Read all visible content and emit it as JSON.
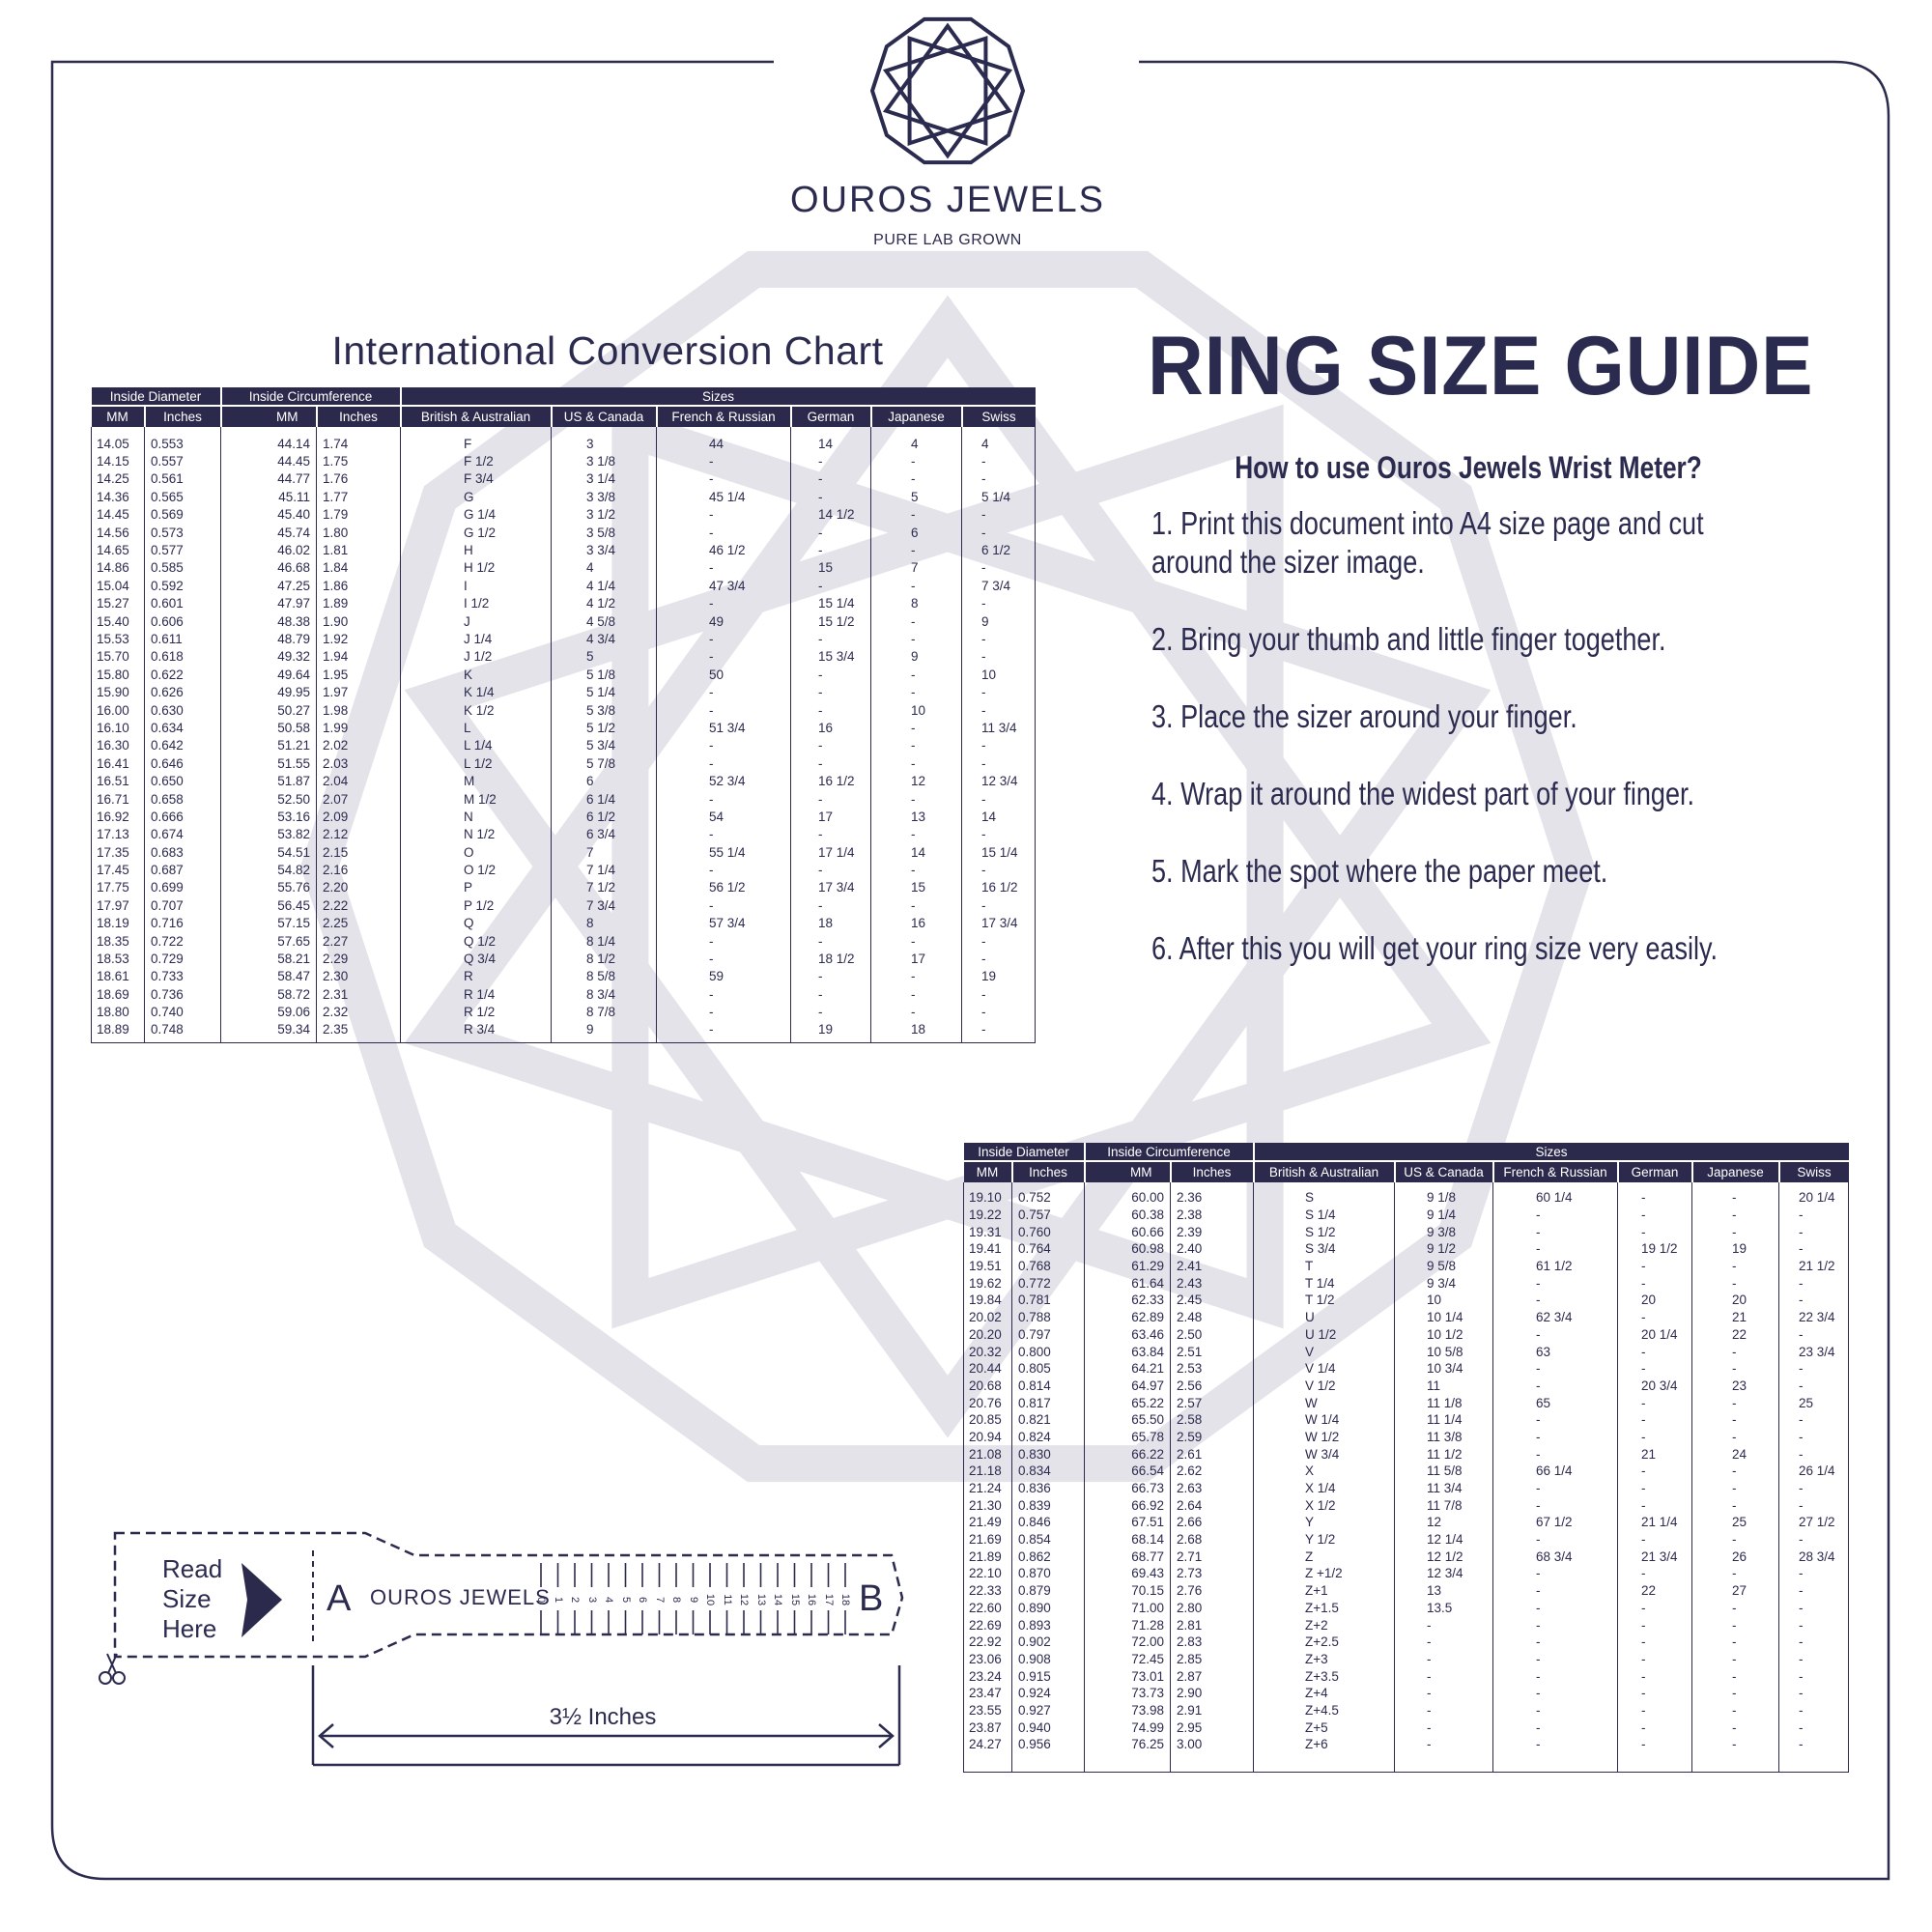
{
  "brand": {
    "name": "OUROS JEWELS",
    "tagline": "PURE LAB GROWN"
  },
  "colors": {
    "navy": "#2b2a4c",
    "watermark": "#e3e3e9",
    "background": "#ffffff"
  },
  "chart_title": "International Conversion Chart",
  "guide": {
    "title": "RING SIZE GUIDE",
    "howto": "How to use Ouros Jewels Wrist Meter?",
    "steps": [
      "1. Print this document into A4 size page and cut around the sizer image.",
      "2. Bring your thumb and little finger together.",
      "3. Place the sizer around your finger.",
      "4. Wrap it around the widest part of your finger.",
      "5. Mark the spot where the paper meet.",
      "6. After this you will get your ring size very easily."
    ]
  },
  "table_headers": {
    "groups": [
      "Inside Diameter",
      "Inside Circumference",
      "Sizes"
    ],
    "columns": [
      "MM",
      "Inches",
      "MM",
      "Inches",
      "British & Australian",
      "US & Canada",
      "French & Russian",
      "German",
      "Japanese",
      "Swiss"
    ]
  },
  "table1": [
    [
      "14.05",
      "0.553",
      "44.14",
      "1.74",
      "F",
      "3",
      "44",
      "14",
      "4",
      "4"
    ],
    [
      "14.15",
      "0.557",
      "44.45",
      "1.75",
      "F 1/2",
      "3 1/8",
      "-",
      "-",
      "-",
      "-"
    ],
    [
      "14.25",
      "0.561",
      "44.77",
      "1.76",
      "F 3/4",
      "3 1/4",
      "-",
      "-",
      "-",
      "-"
    ],
    [
      "14.36",
      "0.565",
      "45.11",
      "1.77",
      "G",
      "3 3/8",
      "45 1/4",
      "-",
      "5",
      "5 1/4"
    ],
    [
      "14.45",
      "0.569",
      "45.40",
      "1.79",
      "G 1/4",
      "3 1/2",
      "-",
      "14 1/2",
      "-",
      "-"
    ],
    [
      "14.56",
      "0.573",
      "45.74",
      "1.80",
      "G 1/2",
      "3 5/8",
      "-",
      "-",
      "6",
      "-"
    ],
    [
      "14.65",
      "0.577",
      "46.02",
      "1.81",
      "H",
      "3 3/4",
      "46 1/2",
      "-",
      "-",
      "6 1/2"
    ],
    [
      "14.86",
      "0.585",
      "46.68",
      "1.84",
      "H 1/2",
      "4",
      "-",
      "15",
      "7",
      "-"
    ],
    [
      "15.04",
      "0.592",
      "47.25",
      "1.86",
      "I",
      "4 1/4",
      "47 3/4",
      "-",
      "-",
      "7 3/4"
    ],
    [
      "15.27",
      "0.601",
      "47.97",
      "1.89",
      "I 1/2",
      "4 1/2",
      "-",
      "15 1/4",
      "8",
      "-"
    ],
    [
      "15.40",
      "0.606",
      "48.38",
      "1.90",
      "J",
      "4 5/8",
      "49",
      "15 1/2",
      "-",
      "9"
    ],
    [
      "15.53",
      "0.611",
      "48.79",
      "1.92",
      "J 1/4",
      "4 3/4",
      "-",
      "-",
      "-",
      "-"
    ],
    [
      "15.70",
      "0.618",
      "49.32",
      "1.94",
      "J 1/2",
      "5",
      "-",
      "15 3/4",
      "9",
      "-"
    ],
    [
      "15.80",
      "0.622",
      "49.64",
      "1.95",
      "K",
      "5 1/8",
      "50",
      "-",
      "-",
      "10"
    ],
    [
      "15.90",
      "0.626",
      "49.95",
      "1.97",
      "K 1/4",
      "5 1/4",
      "-",
      "-",
      "-",
      "-"
    ],
    [
      "16.00",
      "0.630",
      "50.27",
      "1.98",
      "K 1/2",
      "5 3/8",
      "-",
      "-",
      "10",
      "-"
    ],
    [
      "16.10",
      "0.634",
      "50.58",
      "1.99",
      "L",
      "5 1/2",
      "51 3/4",
      "16",
      "-",
      "11 3/4"
    ],
    [
      "16.30",
      "0.642",
      "51.21",
      "2.02",
      "L 1/4",
      "5 3/4",
      "-",
      "-",
      "-",
      "-"
    ],
    [
      "16.41",
      "0.646",
      "51.55",
      "2.03",
      "L 1/2",
      "5 7/8",
      "-",
      "-",
      "-",
      "-"
    ],
    [
      "16.51",
      "0.650",
      "51.87",
      "2.04",
      "M",
      "6",
      "52 3/4",
      "16 1/2",
      "12",
      "12 3/4"
    ],
    [
      "16.71",
      "0.658",
      "52.50",
      "2.07",
      "M 1/2",
      "6 1/4",
      "-",
      "-",
      "-",
      "-"
    ],
    [
      "16.92",
      "0.666",
      "53.16",
      "2.09",
      "N",
      "6 1/2",
      "54",
      "17",
      "13",
      "14"
    ],
    [
      "17.13",
      "0.674",
      "53.82",
      "2.12",
      "N 1/2",
      "6 3/4",
      "-",
      "-",
      "-",
      "-"
    ],
    [
      "17.35",
      "0.683",
      "54.51",
      "2.15",
      "O",
      "7",
      "55 1/4",
      "17 1/4",
      "14",
      "15 1/4"
    ],
    [
      "17.45",
      "0.687",
      "54.82",
      "2.16",
      "O 1/2",
      "7 1/4",
      "-",
      "-",
      "-",
      "-"
    ],
    [
      "17.75",
      "0.699",
      "55.76",
      "2.20",
      "P",
      "7 1/2",
      "56 1/2",
      "17 3/4",
      "15",
      "16 1/2"
    ],
    [
      "17.97",
      "0.707",
      "56.45",
      "2.22",
      "P 1/2",
      "7 3/4",
      "-",
      "-",
      "-",
      "-"
    ],
    [
      "18.19",
      "0.716",
      "57.15",
      "2.25",
      "Q",
      "8",
      "57 3/4",
      "18",
      "16",
      "17 3/4"
    ],
    [
      "18.35",
      "0.722",
      "57.65",
      "2.27",
      "Q 1/2",
      "8 1/4",
      "-",
      "-",
      "-",
      "-"
    ],
    [
      "18.53",
      "0.729",
      "58.21",
      "2.29",
      "Q 3/4",
      "8 1/2",
      "-",
      "18 1/2",
      "17",
      "-"
    ],
    [
      "18.61",
      "0.733",
      "58.47",
      "2.30",
      "R",
      "8 5/8",
      "59",
      "-",
      "-",
      "19"
    ],
    [
      "18.69",
      "0.736",
      "58.72",
      "2.31",
      "R 1/4",
      "8 3/4",
      "-",
      "-",
      "-",
      "-"
    ],
    [
      "18.80",
      "0.740",
      "59.06",
      "2.32",
      "R 1/2",
      "8 7/8",
      "-",
      "-",
      "-",
      "-"
    ],
    [
      "18.89",
      "0.748",
      "59.34",
      "2.35",
      "R 3/4",
      "9",
      "-",
      "19",
      "18",
      "-"
    ]
  ],
  "table2": [
    [
      "19.10",
      "0.752",
      "60.00",
      "2.36",
      "S",
      "9 1/8",
      "60 1/4",
      "-",
      "-",
      "20 1/4"
    ],
    [
      "19.22",
      "0.757",
      "60.38",
      "2.38",
      "S 1/4",
      "9 1/4",
      "-",
      "-",
      "-",
      "-"
    ],
    [
      "19.31",
      "0.760",
      "60.66",
      "2.39",
      "S 1/2",
      "9 3/8",
      "-",
      "-",
      "-",
      "-"
    ],
    [
      "19.41",
      "0.764",
      "60.98",
      "2.40",
      "S 3/4",
      "9 1/2",
      "-",
      "19 1/2",
      "19",
      "-"
    ],
    [
      "19.51",
      "0.768",
      "61.29",
      "2.41",
      "T",
      "9 5/8",
      "61 1/2",
      "-",
      "-",
      "21 1/2"
    ],
    [
      "19.62",
      "0.772",
      "61.64",
      "2.43",
      "T 1/4",
      "9 3/4",
      "-",
      "-",
      "-",
      "-"
    ],
    [
      "19.84",
      "0.781",
      "62.33",
      "2.45",
      "T 1/2",
      "10",
      "-",
      "20",
      "20",
      "-"
    ],
    [
      "20.02",
      "0.788",
      "62.89",
      "2.48",
      "U",
      "10 1/4",
      "62 3/4",
      "-",
      "21",
      "22 3/4"
    ],
    [
      "20.20",
      "0.797",
      "63.46",
      "2.50",
      "U 1/2",
      "10 1/2",
      "-",
      "20 1/4",
      "22",
      "-"
    ],
    [
      "20.32",
      "0.800",
      "63.84",
      "2.51",
      "V",
      "10 5/8",
      "63",
      "-",
      "-",
      "23 3/4"
    ],
    [
      "20.44",
      "0.805",
      "64.21",
      "2.53",
      "V 1/4",
      "10 3/4",
      "-",
      "-",
      "-",
      "-"
    ],
    [
      "20.68",
      "0.814",
      "64.97",
      "2.56",
      "V 1/2",
      "11",
      "-",
      "20 3/4",
      "23",
      "-"
    ],
    [
      "20.76",
      "0.817",
      "65.22",
      "2.57",
      "W",
      "11 1/8",
      "65",
      "-",
      "-",
      "25"
    ],
    [
      "20.85",
      "0.821",
      "65.50",
      "2.58",
      "W 1/4",
      "11 1/4",
      "-",
      "-",
      "-",
      "-"
    ],
    [
      "20.94",
      "0.824",
      "65.78",
      "2.59",
      "W 1/2",
      "11 3/8",
      "-",
      "-",
      "-",
      "-"
    ],
    [
      "21.08",
      "0.830",
      "66.22",
      "2.61",
      "W 3/4",
      "11 1/2",
      "-",
      "21",
      "24",
      "-"
    ],
    [
      "21.18",
      "0.834",
      "66.54",
      "2.62",
      "X",
      "11 5/8",
      "66 1/4",
      "-",
      "-",
      "26 1/4"
    ],
    [
      "21.24",
      "0.836",
      "66.73",
      "2.63",
      "X 1/4",
      "11 3/4",
      "-",
      "-",
      "-",
      "-"
    ],
    [
      "21.30",
      "0.839",
      "66.92",
      "2.64",
      "X 1/2",
      "11 7/8",
      "-",
      "-",
      "-",
      "-"
    ],
    [
      "21.49",
      "0.846",
      "67.51",
      "2.66",
      "Y",
      "12",
      "67 1/2",
      "21 1/4",
      "25",
      "27 1/2"
    ],
    [
      "21.69",
      "0.854",
      "68.14",
      "2.68",
      "Y 1/2",
      "12 1/4",
      "-",
      "-",
      "-",
      "-"
    ],
    [
      "21.89",
      "0.862",
      "68.77",
      "2.71",
      "Z",
      "12 1/2",
      "68 3/4",
      "21 3/4",
      "26",
      "28 3/4"
    ],
    [
      "22.10",
      "0.870",
      "69.43",
      "2.73",
      "Z +1/2",
      "12 3/4",
      "-",
      "-",
      "-",
      "-"
    ],
    [
      "22.33",
      "0.879",
      "70.15",
      "2.76",
      "Z+1",
      "13",
      "-",
      "22",
      "27",
      "-"
    ],
    [
      "22.60",
      "0.890",
      "71.00",
      "2.80",
      "Z+1.5",
      "13.5",
      "-",
      "-",
      "-",
      "-"
    ],
    [
      "22.69",
      "0.893",
      "71.28",
      "2.81",
      "Z+2",
      "-",
      "-",
      "-",
      "-",
      "-"
    ],
    [
      "22.92",
      "0.902",
      "72.00",
      "2.83",
      "Z+2.5",
      "-",
      "-",
      "-",
      "-",
      "-"
    ],
    [
      "23.06",
      "0.908",
      "72.45",
      "2.85",
      "Z+3",
      "-",
      "-",
      "-",
      "-",
      "-"
    ],
    [
      "23.24",
      "0.915",
      "73.01",
      "2.87",
      "Z+3.5",
      "-",
      "-",
      "-",
      "-",
      "-"
    ],
    [
      "23.47",
      "0.924",
      "73.73",
      "2.90",
      "Z+4",
      "-",
      "-",
      "-",
      "-",
      "-"
    ],
    [
      "23.55",
      "0.927",
      "73.98",
      "2.91",
      "Z+4.5",
      "-",
      "-",
      "-",
      "-",
      "-"
    ],
    [
      "23.87",
      "0.940",
      "74.99",
      "2.95",
      "Z+5",
      "-",
      "-",
      "-",
      "-",
      "-"
    ],
    [
      "24.27",
      "0.956",
      "76.25",
      "3.00",
      "Z+6",
      "-",
      "-",
      "-",
      "-",
      "-"
    ]
  ],
  "sizer": {
    "read_lines": [
      "Read",
      "Size",
      "Here"
    ],
    "start_label": "A",
    "brand": "OUROS JEWELS",
    "scale_numbers": [
      "0",
      "1",
      "2",
      "3",
      "4",
      "5",
      "6",
      "7",
      "8",
      "9",
      "10",
      "11",
      "12",
      "13",
      "14",
      "15",
      "16",
      "17",
      "18"
    ],
    "end_label": "B",
    "length_label": "3½ Inches"
  }
}
